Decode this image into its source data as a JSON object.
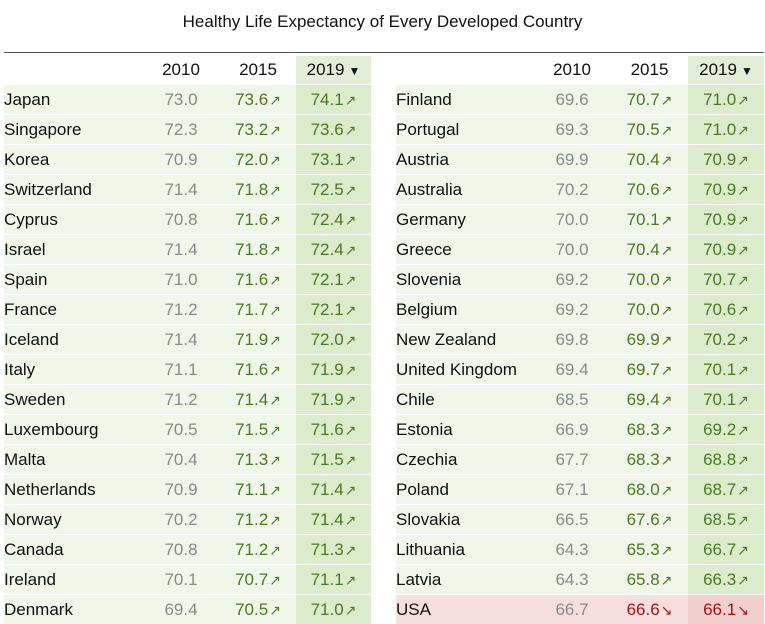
{
  "chart_data": {
    "type": "table",
    "title": "Healthy Life Expectancy of Every Developed Country",
    "columns": [
      "",
      "2010",
      "2015",
      "2019"
    ],
    "sorted_column": "2019",
    "sort_indicator": "▼",
    "up_arrow": "↗",
    "down_arrow": "↘",
    "colors": {
      "header_highlight": "#e3edd7",
      "row_background": "#f1f6eb",
      "sorted_cell": "#dcebcc",
      "increase_text": "#4a7a22",
      "decrease_text": "#a31515",
      "decrease_row": "#f7dede",
      "baseline_text": "#8a8a8a"
    },
    "left": [
      {
        "country": "Japan",
        "y2010": "73.0",
        "y2015": "73.6",
        "y2019": "74.1",
        "t2015": "up",
        "t2019": "up"
      },
      {
        "country": "Singapore",
        "y2010": "72.3",
        "y2015": "73.2",
        "y2019": "73.6",
        "t2015": "up",
        "t2019": "up"
      },
      {
        "country": "Korea",
        "y2010": "70.9",
        "y2015": "72.0",
        "y2019": "73.1",
        "t2015": "up",
        "t2019": "up"
      },
      {
        "country": "Switzerland",
        "y2010": "71.4",
        "y2015": "71.8",
        "y2019": "72.5",
        "t2015": "up",
        "t2019": "up"
      },
      {
        "country": "Cyprus",
        "y2010": "70.8",
        "y2015": "71.6",
        "y2019": "72.4",
        "t2015": "up",
        "t2019": "up"
      },
      {
        "country": "Israel",
        "y2010": "71.4",
        "y2015": "71.8",
        "y2019": "72.4",
        "t2015": "up",
        "t2019": "up"
      },
      {
        "country": "Spain",
        "y2010": "71.0",
        "y2015": "71.6",
        "y2019": "72.1",
        "t2015": "up",
        "t2019": "up"
      },
      {
        "country": "France",
        "y2010": "71.2",
        "y2015": "71.7",
        "y2019": "72.1",
        "t2015": "up",
        "t2019": "up"
      },
      {
        "country": "Iceland",
        "y2010": "71.4",
        "y2015": "71.9",
        "y2019": "72.0",
        "t2015": "up",
        "t2019": "up"
      },
      {
        "country": "Italy",
        "y2010": "71.1",
        "y2015": "71.6",
        "y2019": "71.9",
        "t2015": "up",
        "t2019": "up"
      },
      {
        "country": "Sweden",
        "y2010": "71.2",
        "y2015": "71.4",
        "y2019": "71.9",
        "t2015": "up",
        "t2019": "up"
      },
      {
        "country": "Luxembourg",
        "y2010": "70.5",
        "y2015": "71.5",
        "y2019": "71.6",
        "t2015": "up",
        "t2019": "up"
      },
      {
        "country": "Malta",
        "y2010": "70.4",
        "y2015": "71.3",
        "y2019": "71.5",
        "t2015": "up",
        "t2019": "up"
      },
      {
        "country": "Netherlands",
        "y2010": "70.9",
        "y2015": "71.1",
        "y2019": "71.4",
        "t2015": "up",
        "t2019": "up"
      },
      {
        "country": "Norway",
        "y2010": "70.2",
        "y2015": "71.2",
        "y2019": "71.4",
        "t2015": "up",
        "t2019": "up"
      },
      {
        "country": "Canada",
        "y2010": "70.8",
        "y2015": "71.2",
        "y2019": "71.3",
        "t2015": "up",
        "t2019": "up"
      },
      {
        "country": "Ireland",
        "y2010": "70.1",
        "y2015": "70.7",
        "y2019": "71.1",
        "t2015": "up",
        "t2019": "up"
      },
      {
        "country": "Denmark",
        "y2010": "69.4",
        "y2015": "70.5",
        "y2019": "71.0",
        "t2015": "up",
        "t2019": "up"
      }
    ],
    "right": [
      {
        "country": "Finland",
        "y2010": "69.6",
        "y2015": "70.7",
        "y2019": "71.0",
        "t2015": "up",
        "t2019": "up"
      },
      {
        "country": "Portugal",
        "y2010": "69.3",
        "y2015": "70.5",
        "y2019": "71.0",
        "t2015": "up",
        "t2019": "up"
      },
      {
        "country": "Austria",
        "y2010": "69.9",
        "y2015": "70.4",
        "y2019": "70.9",
        "t2015": "up",
        "t2019": "up"
      },
      {
        "country": "Australia",
        "y2010": "70.2",
        "y2015": "70.6",
        "y2019": "70.9",
        "t2015": "up",
        "t2019": "up"
      },
      {
        "country": "Germany",
        "y2010": "70.0",
        "y2015": "70.1",
        "y2019": "70.9",
        "t2015": "up",
        "t2019": "up"
      },
      {
        "country": "Greece",
        "y2010": "70.0",
        "y2015": "70.4",
        "y2019": "70.9",
        "t2015": "up",
        "t2019": "up"
      },
      {
        "country": "Slovenia",
        "y2010": "69.2",
        "y2015": "70.0",
        "y2019": "70.7",
        "t2015": "up",
        "t2019": "up"
      },
      {
        "country": "Belgium",
        "y2010": "69.2",
        "y2015": "70.0",
        "y2019": "70.6",
        "t2015": "up",
        "t2019": "up"
      },
      {
        "country": "New Zealand",
        "y2010": "69.8",
        "y2015": "69.9",
        "y2019": "70.2",
        "t2015": "up",
        "t2019": "up"
      },
      {
        "country": "United Kingdom",
        "y2010": "69.4",
        "y2015": "69.7",
        "y2019": "70.1",
        "t2015": "up",
        "t2019": "up"
      },
      {
        "country": "Chile",
        "y2010": "68.5",
        "y2015": "69.4",
        "y2019": "70.1",
        "t2015": "up",
        "t2019": "up"
      },
      {
        "country": "Estonia",
        "y2010": "66.9",
        "y2015": "68.3",
        "y2019": "69.2",
        "t2015": "up",
        "t2019": "up"
      },
      {
        "country": "Czechia",
        "y2010": "67.7",
        "y2015": "68.3",
        "y2019": "68.8",
        "t2015": "up",
        "t2019": "up"
      },
      {
        "country": "Poland",
        "y2010": "67.1",
        "y2015": "68.0",
        "y2019": "68.7",
        "t2015": "up",
        "t2019": "up"
      },
      {
        "country": "Slovakia",
        "y2010": "66.5",
        "y2015": "67.6",
        "y2019": "68.5",
        "t2015": "up",
        "t2019": "up"
      },
      {
        "country": "Lithuania",
        "y2010": "64.3",
        "y2015": "65.3",
        "y2019": "66.7",
        "t2015": "up",
        "t2019": "up"
      },
      {
        "country": "Latvia",
        "y2010": "64.3",
        "y2015": "65.8",
        "y2019": "66.3",
        "t2015": "up",
        "t2019": "up"
      },
      {
        "country": "USA",
        "y2010": "66.7",
        "y2015": "66.6",
        "y2019": "66.1",
        "t2015": "down",
        "t2019": "down"
      }
    ]
  }
}
